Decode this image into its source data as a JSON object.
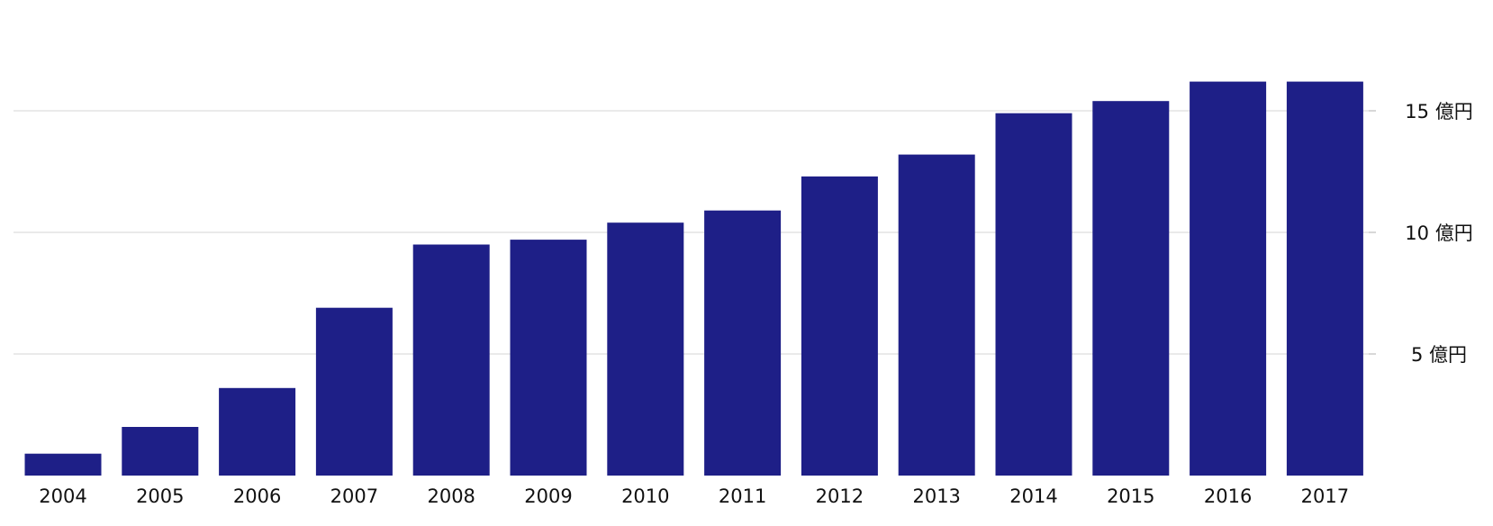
{
  "chart_data": {
    "type": "bar",
    "title": "",
    "xlabel": "",
    "ylabel": "",
    "categories": [
      "2004",
      "2005",
      "2006",
      "2007",
      "2008",
      "2009",
      "2010",
      "2011",
      "2012",
      "2013",
      "2014",
      "2015",
      "2016",
      "2017"
    ],
    "values": [
      0.9,
      2.0,
      3.6,
      6.9,
      9.5,
      9.7,
      10.4,
      10.9,
      12.3,
      13.2,
      14.9,
      15.4,
      16.2,
      16.2
    ],
    "ylim": [
      0,
      17.5
    ],
    "y_ticks": [
      5,
      10,
      15
    ],
    "y_tick_labels": [
      "5 億円",
      "10 億円",
      "15 億円"
    ],
    "y_axis_side": "right",
    "grid": true,
    "bar_color": "#1e1f87",
    "grid_color": "#e3e3e3"
  }
}
